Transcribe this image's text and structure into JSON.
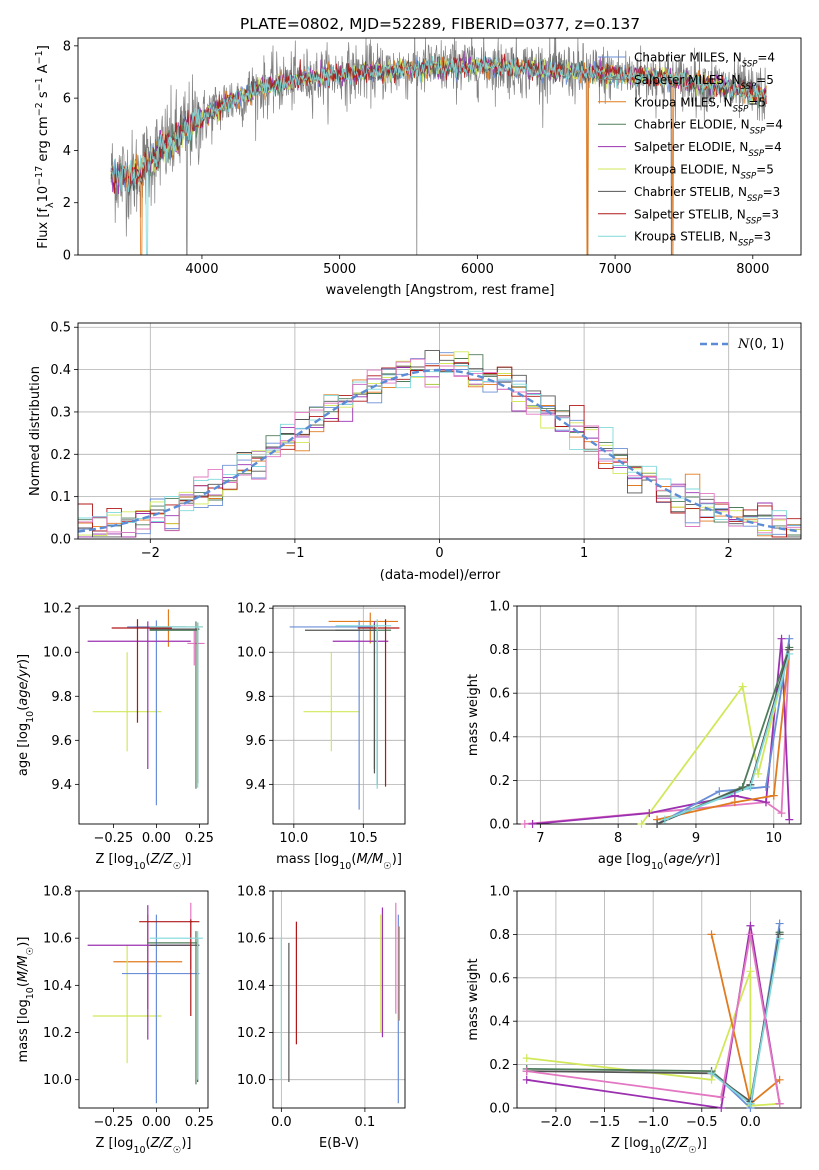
{
  "figure": {
    "title": "PLATE=0802, MJD=52289, FIBERID=0377, z=0.137"
  },
  "series_colors": {
    "Chabrier MILES": "#6a8fd6",
    "Salpeter MILES": "#a0a0a0",
    "Kroupa MILES": "#e07b20",
    "Chabrier ELODIE": "#4f7d5c",
    "Salpeter ELODIE": "#9b30b0",
    "Kroupa ELODIE": "#d2e85a",
    "Chabrier STELIB": "#555555",
    "Salpeter STELIB": "#b01818",
    "Kroupa STELIB": "#7fd9dc"
  },
  "chart_data": [
    {
      "id": "spectrum",
      "type": "line",
      "xlabel": "wavelength [Angstrom, rest frame]",
      "ylabel": "Flux [f_λ 10^-17 erg cm^-2 s^-1 A^-1]",
      "xlim": [
        3100,
        8350
      ],
      "ylim": [
        0,
        8.3
      ],
      "xticks": [
        4000,
        5000,
        6000,
        7000,
        8000
      ],
      "yticks": [
        0,
        2,
        4,
        6,
        8
      ],
      "legend_position": "right",
      "legend": [
        {
          "label": "Chabrier MILES, N",
          "sub": "SSP",
          "suffix": "=4",
          "color": "#6a8fd6"
        },
        {
          "label": "Salpeter MILES, N",
          "sub": "SSP",
          "suffix": "=5",
          "color": "#808080"
        },
        {
          "label": "Kroupa MILES, N",
          "sub": "SSP",
          "suffix": "=5",
          "color": "#e07b20"
        },
        {
          "label": "Chabrier ELODIE, N",
          "sub": "SSP",
          "suffix": "=4",
          "color": "#4f7d5c"
        },
        {
          "label": "Salpeter ELODIE, N",
          "sub": "SSP",
          "suffix": "=4",
          "color": "#9b30b0"
        },
        {
          "label": "Kroupa ELODIE, N",
          "sub": "SSP",
          "suffix": "=5",
          "color": "#d2e85a"
        },
        {
          "label": "Chabrier STELIB, N",
          "sub": "SSP",
          "suffix": "=3",
          "color": "#555555"
        },
        {
          "label": "Salpeter STELIB, N",
          "sub": "SSP",
          "suffix": "=3",
          "color": "#b01818"
        },
        {
          "label": "Kroupa STELIB, N",
          "sub": "SSP",
          "suffix": "=3",
          "color": "#7fd9dc"
        }
      ],
      "continuum": {
        "x": [
          3340,
          3500,
          3560,
          3600,
          3700,
          3800,
          3900,
          4000,
          4100,
          4200,
          4300,
          4400,
          4500,
          4600,
          4800,
          5000,
          5200,
          5500,
          5800,
          6100,
          6400,
          6700,
          7000,
          7300,
          7600,
          7900,
          8100
        ],
        "y": [
          3.05,
          3.0,
          3.2,
          3.5,
          4.0,
          4.4,
          4.9,
          5.2,
          5.6,
          5.9,
          6.1,
          6.3,
          6.5,
          6.6,
          6.8,
          6.9,
          7.0,
          7.1,
          7.2,
          7.25,
          7.1,
          7.0,
          6.9,
          6.8,
          6.6,
          6.3,
          6.1
        ]
      }
    },
    {
      "id": "residuals",
      "type": "histogram",
      "xlabel": "(data-model)/error",
      "ylabel": "Normed distribution",
      "xlim": [
        -2.5,
        2.5
      ],
      "ylim": [
        0,
        0.51
      ],
      "xticks": [
        -2,
        -1,
        0,
        1,
        2
      ],
      "yticks": [
        0.0,
        0.1,
        0.2,
        0.3,
        0.4,
        0.5
      ],
      "bin_width": 0.1,
      "legend": [
        {
          "label": "N(0,1)",
          "color": "#5b8dd6",
          "style": "dashed"
        }
      ],
      "legend_position": "top-right"
    },
    {
      "id": "age_vs_Z",
      "type": "scatter",
      "xlabel": "Z [log10(Z/Z☉)]",
      "ylabel": "age  [log10(age/yr)]",
      "xlim": [
        -0.45,
        0.3
      ],
      "ylim": [
        9.22,
        10.21
      ],
      "xticks": [
        -0.25,
        0.0,
        0.25
      ],
      "yticks": [
        9.4,
        9.6,
        9.8,
        10.0,
        10.2
      ],
      "points": [
        {
          "x": 0.07,
          "y": 10.115,
          "xerr": [
            0.2,
            0.2
          ],
          "yerr": [
            0.09,
            0.08
          ],
          "color": "#e07b20"
        },
        {
          "x": -0.17,
          "y": 9.73,
          "xerr": [
            0.2,
            0.2
          ],
          "yerr": [
            0.18,
            0.27
          ],
          "color": "#d2e85a"
        },
        {
          "x": 0.0,
          "y": 10.115,
          "xerr": [
            0.17,
            0.17
          ],
          "yerr": [
            0.81,
            0.03
          ],
          "color": "#6a8fd6"
        },
        {
          "x": -0.05,
          "y": 10.05,
          "xerr": [
            0.35,
            0.25
          ],
          "yerr": [
            0.58,
            0.09
          ],
          "color": "#9b30b0"
        },
        {
          "x": 0.22,
          "y": 10.04,
          "xerr": [
            0.04,
            0.06
          ],
          "yerr": [
            0.1,
            0.06
          ],
          "color": "#e377c2"
        },
        {
          "x": 0.23,
          "y": 10.1,
          "xerr": [
            0.27,
            0.01
          ],
          "yerr": [
            0.72,
            0.04
          ],
          "color": "#4f7d5c"
        },
        {
          "x": 0.24,
          "y": 10.105,
          "xerr": [
            0.28,
            0.01
          ],
          "yerr": [
            0.7,
            0.03
          ],
          "color": "#555555"
        },
        {
          "x": -0.11,
          "y": 10.11,
          "xerr": [
            0.15,
            0.2
          ],
          "yerr": [
            0.43,
            0.04
          ],
          "color": "#b01818"
        },
        {
          "x": 0.24,
          "y": 10.115,
          "xerr": [
            0.28,
            0.03
          ],
          "yerr": [
            0.73,
            0.02
          ],
          "color": "#7fd9dc"
        }
      ]
    },
    {
      "id": "age_vs_mass",
      "type": "scatter",
      "xlabel": "mass [log10(M/M☉)]",
      "ylabel": "",
      "xlim": [
        9.85,
        10.8
      ],
      "ylim": [
        9.22,
        10.21
      ],
      "xticks": [
        10.0,
        10.5
      ],
      "yticks": [
        9.4,
        9.6,
        9.8,
        10.0,
        10.2
      ],
      "points": [
        {
          "x": 10.55,
          "y": 10.14,
          "xerr": [
            0.3,
            0.2
          ],
          "yerr": [
            0.1,
            0.04
          ],
          "color": "#e07b20"
        },
        {
          "x": 10.27,
          "y": 9.73,
          "xerr": [
            0.2,
            0.2
          ],
          "yerr": [
            0.18,
            0.27
          ],
          "color": "#d2e85a"
        },
        {
          "x": 10.47,
          "y": 10.115,
          "xerr": [
            0.5,
            0.1
          ],
          "yerr": [
            0.83,
            0.03
          ],
          "color": "#6a8fd6"
        },
        {
          "x": 10.58,
          "y": 10.05,
          "xerr": [
            0.3,
            0.1
          ],
          "yerr": [
            0.58,
            0.09
          ],
          "color": "#9b30b0"
        },
        {
          "x": 10.6,
          "y": 10.1,
          "xerr": [
            0.3,
            0.1
          ],
          "yerr": [
            0.7,
            0.03
          ],
          "color": "#4f7d5c"
        },
        {
          "x": 10.58,
          "y": 10.1,
          "xerr": [
            0.5,
            0.01
          ],
          "yerr": [
            0.65,
            0.03
          ],
          "color": "#555555"
        },
        {
          "x": 10.66,
          "y": 10.11,
          "xerr": [
            0.2,
            0.1
          ],
          "yerr": [
            0.72,
            0.04
          ],
          "color": "#b01818"
        },
        {
          "x": 10.6,
          "y": 10.12,
          "xerr": [
            0.3,
            0.1
          ],
          "yerr": [
            0.74,
            0.03
          ],
          "color": "#7fd9dc"
        }
      ]
    },
    {
      "id": "weight_vs_age",
      "type": "line",
      "xlabel": "age  [log10(age/yr)]",
      "ylabel": "mass weight",
      "xlim": [
        6.7,
        10.35
      ],
      "ylim": [
        0,
        1.0
      ],
      "xticks": [
        7,
        8,
        9,
        10
      ],
      "yticks": [
        0.0,
        0.2,
        0.4,
        0.6,
        0.8,
        1.0
      ],
      "series": [
        {
          "color": "#e377c2",
          "x": [
            6.8,
            9.9,
            10.1,
            10.2
          ],
          "y": [
            0.0,
            0.1,
            0.05,
            0.8
          ]
        },
        {
          "color": "#9b30b0",
          "x": [
            6.9,
            8.4,
            9.5,
            9.9,
            10.1,
            10.2
          ],
          "y": [
            0.0,
            0.05,
            0.13,
            0.1,
            0.85,
            0.02
          ]
        },
        {
          "color": "#6a8fd6",
          "x": [
            8.5,
            9.3,
            9.9,
            10.2
          ],
          "y": [
            0.0,
            0.15,
            0.17,
            0.85
          ]
        },
        {
          "color": "#e07b20",
          "x": [
            8.5,
            9.5,
            10.0,
            10.2
          ],
          "y": [
            0.02,
            0.1,
            0.13,
            0.8
          ]
        },
        {
          "color": "#d2e85a",
          "x": [
            8.3,
            9.6,
            9.8,
            10.2
          ],
          "y": [
            0.0,
            0.63,
            0.23,
            0.8
          ]
        },
        {
          "color": "#4f7d5c",
          "x": [
            8.5,
            9.6,
            10.2
          ],
          "y": [
            0.0,
            0.17,
            0.81
          ]
        },
        {
          "color": "#555555",
          "x": [
            8.5,
            9.7,
            10.2
          ],
          "y": [
            0.0,
            0.18,
            0.8
          ]
        },
        {
          "color": "#7fd9dc",
          "x": [
            8.6,
            9.7,
            10.2
          ],
          "y": [
            0.02,
            0.17,
            0.78
          ]
        }
      ]
    },
    {
      "id": "mass_vs_Z",
      "type": "scatter",
      "xlabel": "Z [log10(Z/Z☉)]",
      "ylabel": "mass [log10(M/M☉)]",
      "xlim": [
        -0.45,
        0.3
      ],
      "ylim": [
        9.88,
        10.8
      ],
      "xticks": [
        -0.25,
        0.0,
        0.25
      ],
      "yticks": [
        10.0,
        10.2,
        10.4,
        10.6,
        10.8
      ],
      "points": [
        {
          "x": -0.05,
          "y": 10.5,
          "xerr": [
            0.2,
            0.2
          ],
          "yerr": [
            0.2,
            0.2
          ],
          "color": "#e07b20"
        },
        {
          "x": -0.17,
          "y": 10.27,
          "xerr": [
            0.2,
            0.2
          ],
          "yerr": [
            0.2,
            0.3
          ],
          "color": "#d2e85a"
        },
        {
          "x": 0.0,
          "y": 10.45,
          "xerr": [
            0.2,
            0.25
          ],
          "yerr": [
            0.55,
            0.25
          ],
          "color": "#6a8fd6"
        },
        {
          "x": -0.05,
          "y": 10.57,
          "xerr": [
            0.35,
            0.25
          ],
          "yerr": [
            0.4,
            0.17
          ],
          "color": "#9b30b0"
        },
        {
          "x": 0.2,
          "y": 10.67,
          "xerr": [
            0.01,
            0.01
          ],
          "yerr": [
            0.2,
            0.08
          ],
          "color": "#e377c2"
        },
        {
          "x": 0.23,
          "y": 10.58,
          "xerr": [
            0.28,
            0.01
          ],
          "yerr": [
            0.6,
            0.05
          ],
          "color": "#4f7d5c"
        },
        {
          "x": 0.24,
          "y": 10.57,
          "xerr": [
            0.28,
            0.01
          ],
          "yerr": [
            0.58,
            0.03
          ],
          "color": "#555555"
        },
        {
          "x": 0.2,
          "y": 10.67,
          "xerr": [
            0.3,
            0.05
          ],
          "yerr": [
            0.4,
            0.01
          ],
          "color": "#b01818"
        },
        {
          "x": 0.24,
          "y": 10.6,
          "xerr": [
            0.28,
            0.03
          ],
          "yerr": [
            0.6,
            0.03
          ],
          "color": "#7fd9dc"
        }
      ]
    },
    {
      "id": "mass_vs_EBV",
      "type": "errorbar",
      "xlabel": "E(B-V)",
      "ylabel": "",
      "xlim": [
        -0.01,
        0.148
      ],
      "ylim": [
        9.88,
        10.8
      ],
      "xticks": [
        0.0,
        0.1
      ],
      "yticks": [
        10.0,
        10.2,
        10.4,
        10.6,
        10.8
      ],
      "points": [
        {
          "x": 0.0,
          "y": 10.3,
          "yerr": [
            0.3,
            0.3
          ],
          "color": "#7fd9dc"
        },
        {
          "x": 0.009,
          "y": 10.27,
          "yerr": [
            0.28,
            0.31
          ],
          "color": "#555555"
        },
        {
          "x": 0.018,
          "y": 10.43,
          "yerr": [
            0.28,
            0.24
          ],
          "color": "#b01818"
        },
        {
          "x": 0.119,
          "y": 10.45,
          "yerr": [
            0.25,
            0.25
          ],
          "color": "#d2e85a"
        },
        {
          "x": 0.121,
          "y": 10.46,
          "yerr": [
            0.28,
            0.27
          ],
          "color": "#9b30b0"
        },
        {
          "x": 0.137,
          "y": 10.5,
          "yerr": [
            0.22,
            0.25
          ],
          "color": "#e377c2"
        },
        {
          "x": 0.14,
          "y": 10.3,
          "yerr": [
            0.4,
            0.4
          ],
          "color": "#6a8fd6"
        },
        {
          "x": 0.141,
          "y": 10.45,
          "yerr": [
            0.2,
            0.2
          ],
          "color": "#e07b20"
        }
      ]
    },
    {
      "id": "weight_vs_Z",
      "type": "line",
      "xlabel": "Z [log10(Z/Z☉)]",
      "ylabel": "mass weight",
      "xlim": [
        -2.4,
        0.52
      ],
      "ylim": [
        0,
        1.0
      ],
      "xticks": [
        -2.0,
        -1.5,
        -1.0,
        -0.5,
        0.0
      ],
      "yticks": [
        0.0,
        0.2,
        0.4,
        0.6,
        0.8,
        1.0
      ],
      "series": [
        {
          "color": "#d2e85a",
          "x": [
            -2.3,
            -0.4,
            0.0,
            0.0,
            0.3
          ],
          "y": [
            0.23,
            0.13,
            0.63,
            0.01,
            0.02
          ]
        },
        {
          "color": "#9b30b0",
          "x": [
            -2.3,
            -0.3,
            0.0,
            0.3
          ],
          "y": [
            0.13,
            0.0,
            0.84,
            0.02
          ]
        },
        {
          "color": "#6a8fd6",
          "x": [
            -0.4,
            0.0,
            0.3
          ],
          "y": [
            0.17,
            0.0,
            0.85
          ]
        },
        {
          "color": "#e07b20",
          "x": [
            -0.4,
            0.0,
            0.3
          ],
          "y": [
            0.8,
            0.02,
            0.13
          ]
        },
        {
          "color": "#4f7d5c",
          "x": [
            -2.3,
            -0.4,
            0.0,
            0.3
          ],
          "y": [
            0.18,
            0.17,
            0.02,
            0.81
          ]
        },
        {
          "color": "#555555",
          "x": [
            -2.3,
            -0.4,
            0.0,
            0.3
          ],
          "y": [
            0.17,
            0.16,
            0.03,
            0.8
          ]
        },
        {
          "color": "#7fd9dc",
          "x": [
            -0.4,
            0.0,
            0.3
          ],
          "y": [
            0.16,
            0.02,
            0.78
          ]
        },
        {
          "color": "#e377c2",
          "x": [
            -2.3,
            -0.3,
            0.0,
            0.3
          ],
          "y": [
            0.17,
            0.05,
            0.8,
            0.02
          ]
        }
      ]
    }
  ]
}
